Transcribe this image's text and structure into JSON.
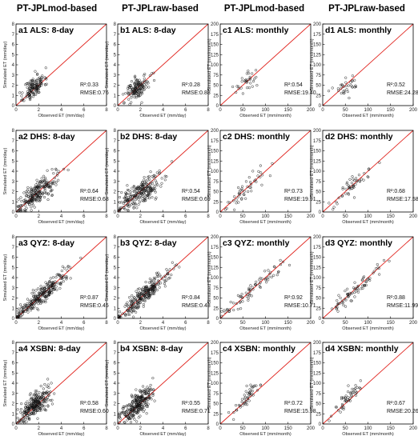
{
  "column_titles": [
    "PT-JPLmod-based",
    "PT-JPLraw-based",
    "PT-JPLmod-based",
    "PT-JPLraw-based"
  ],
  "chart_data": [
    {
      "type": "scatter",
      "id": "a1",
      "panel_label": "a1",
      "title": "ALS: 8-day",
      "xlabel": "Observed ET (mm/day)",
      "ylabel": "Simulated ET (mm/day)",
      "xlim": [
        0,
        8
      ],
      "ylim": [
        0,
        8
      ],
      "xticks": [
        "0",
        "2",
        "4",
        "6",
        "8"
      ],
      "yticks": [
        "0",
        "1",
        "2",
        "3",
        "4",
        "5",
        "6",
        "7",
        "8"
      ],
      "r2": "R²:0.33",
      "rmse": "RMSE:0.76",
      "cloud": {
        "cx": 1.6,
        "cy": 1.8,
        "sx": 0.45,
        "sy": 0.65,
        "rho": 0.55,
        "n": 140,
        "seed": 11
      }
    },
    {
      "type": "scatter",
      "id": "b1",
      "panel_label": "b1",
      "title": "ALS: 8-day",
      "xlabel": "Observed ET (mm/day)",
      "ylabel": "Simulated ET (mm/day)",
      "xlim": [
        0,
        8
      ],
      "ylim": [
        0,
        8
      ],
      "xticks": [
        "0",
        "2",
        "4",
        "6",
        "8"
      ],
      "yticks": [
        "0",
        "1",
        "2",
        "3",
        "4",
        "5",
        "6",
        "7",
        "8"
      ],
      "r2": "R²:0.28",
      "rmse": "RMSE:0.88",
      "cloud": {
        "cx": 1.8,
        "cy": 1.7,
        "sx": 0.5,
        "sy": 0.6,
        "rho": 0.5,
        "n": 140,
        "seed": 12
      }
    },
    {
      "type": "scatter",
      "id": "c1",
      "panel_label": "c1",
      "title": "ALS: monthly",
      "xlabel": "Observed ET (mm/month)",
      "ylabel": "Simulated ET (mm/month)",
      "xlim": [
        0,
        200
      ],
      "ylim": [
        0,
        200
      ],
      "xticks": [
        "0",
        "50",
        "100",
        "150",
        "200"
      ],
      "yticks": [
        "0",
        "25",
        "50",
        "75",
        "100",
        "125",
        "150",
        "175",
        "200"
      ],
      "r2": "R²:0.54",
      "rmse": "RMSE:19.40",
      "cloud": {
        "cx": 60,
        "cy": 60,
        "sx": 14,
        "sy": 16,
        "rho": 0.7,
        "n": 32,
        "seed": 13
      }
    },
    {
      "type": "scatter",
      "id": "d1",
      "panel_label": "d1",
      "title": "ALS: monthly",
      "xlabel": "Observed ET (mm/month)",
      "ylabel": "Simulated ET (mm/month)",
      "xlim": [
        0,
        200
      ],
      "ylim": [
        0,
        200
      ],
      "xticks": [
        "0",
        "50",
        "100",
        "150",
        "200"
      ],
      "yticks": [
        "0",
        "25",
        "50",
        "75",
        "100",
        "125",
        "150",
        "175",
        "200"
      ],
      "r2": "R²:0.52",
      "rmse": "RMSE:24.28",
      "cloud": {
        "cx": 60,
        "cy": 52,
        "sx": 16,
        "sy": 14,
        "rho": 0.7,
        "n": 32,
        "seed": 14
      }
    },
    {
      "type": "scatter",
      "id": "a2",
      "panel_label": "a2",
      "title": "DHS: 8-day",
      "xlabel": "Observed ET (mm/day)",
      "ylabel": "Simulated ET (mm/day)",
      "xlim": [
        0,
        8
      ],
      "ylim": [
        0,
        8
      ],
      "xticks": [
        "0",
        "2",
        "4",
        "6",
        "8"
      ],
      "yticks": [
        "0",
        "1",
        "2",
        "3",
        "4",
        "5",
        "6",
        "7",
        "8"
      ],
      "r2": "R²:0.64",
      "rmse": "RMSE:0.68",
      "cloud": {
        "cx": 1.9,
        "cy": 1.9,
        "sx": 0.9,
        "sy": 0.95,
        "rho": 0.8,
        "n": 230,
        "seed": 21
      }
    },
    {
      "type": "scatter",
      "id": "b2",
      "panel_label": "b2",
      "title": "DHS: 8-day",
      "xlabel": "Observed ET (mm/day)",
      "ylabel": "Simulated ET (mm/day)",
      "xlim": [
        0,
        8
      ],
      "ylim": [
        0,
        8
      ],
      "xticks": [
        "0",
        "2",
        "4",
        "6",
        "8"
      ],
      "yticks": [
        "0",
        "1",
        "2",
        "3",
        "4",
        "5",
        "6",
        "7",
        "8"
      ],
      "r2": "R²:0.54",
      "rmse": "RMSE:0.69",
      "cloud": {
        "cx": 1.9,
        "cy": 1.8,
        "sx": 0.9,
        "sy": 0.85,
        "rho": 0.74,
        "n": 230,
        "seed": 22
      }
    },
    {
      "type": "scatter",
      "id": "c2",
      "panel_label": "c2",
      "title": "DHS: monthly",
      "xlabel": "Observed ET (mm/month)",
      "ylabel": "Simulated ET (mm/month)",
      "xlim": [
        0,
        200
      ],
      "ylim": [
        0,
        200
      ],
      "xticks": [
        "0",
        "50",
        "100",
        "150",
        "200"
      ],
      "yticks": [
        "0",
        "25",
        "50",
        "75",
        "100",
        "125",
        "150",
        "175",
        "200"
      ],
      "r2": "R²:0.73",
      "rmse": "RMSE:19.91",
      "cloud": {
        "cx": 60,
        "cy": 58,
        "sx": 22,
        "sy": 24,
        "rho": 0.85,
        "n": 48,
        "seed": 23
      }
    },
    {
      "type": "scatter",
      "id": "d2",
      "panel_label": "d2",
      "title": "DHS: monthly",
      "xlabel": "Observed ET (mm/month)",
      "ylabel": "Simulated ET (mm/month)",
      "xlim": [
        0,
        200
      ],
      "ylim": [
        0,
        200
      ],
      "xticks": [
        "0",
        "50",
        "100",
        "150",
        "200"
      ],
      "yticks": [
        "0",
        "25",
        "50",
        "75",
        "100",
        "125",
        "150",
        "175",
        "200"
      ],
      "r2": "R²:0.68",
      "rmse": "RMSE:17.58",
      "cloud": {
        "cx": 58,
        "cy": 55,
        "sx": 22,
        "sy": 22,
        "rho": 0.82,
        "n": 48,
        "seed": 24
      }
    },
    {
      "type": "scatter",
      "id": "a3",
      "panel_label": "a3",
      "title": "QYZ: 8-day",
      "xlabel": "Observed ET (mm/day)",
      "ylabel": "Simulated ET (mm/day)",
      "xlim": [
        0,
        8
      ],
      "ylim": [
        0,
        8
      ],
      "xticks": [
        "0",
        "2",
        "4",
        "6",
        "8"
      ],
      "yticks": [
        "0",
        "1",
        "2",
        "3",
        "4",
        "5",
        "6",
        "7",
        "8"
      ],
      "r2": "R²:0.87",
      "rmse": "RMSE:0.45",
      "cloud": {
        "cx": 2.2,
        "cy": 2.2,
        "sx": 1.2,
        "sy": 1.2,
        "rho": 0.93,
        "n": 260,
        "seed": 31
      }
    },
    {
      "type": "scatter",
      "id": "b3",
      "panel_label": "b3",
      "title": "QYZ: 8-day",
      "xlabel": "Observed ET (mm/day)",
      "ylabel": "Simulated ET (mm/day)",
      "xlim": [
        0,
        8
      ],
      "ylim": [
        0,
        8
      ],
      "xticks": [
        "0",
        "2",
        "4",
        "6",
        "8"
      ],
      "yticks": [
        "0",
        "1",
        "2",
        "3",
        "4",
        "5",
        "6",
        "7",
        "8"
      ],
      "r2": "R²:0.84",
      "rmse": "RMSE:0.48",
      "cloud": {
        "cx": 2.2,
        "cy": 2.2,
        "sx": 1.2,
        "sy": 1.2,
        "rho": 0.92,
        "n": 260,
        "seed": 32
      }
    },
    {
      "type": "scatter",
      "id": "c3",
      "panel_label": "c3",
      "title": "QYZ: monthly",
      "xlabel": "Observed ET (mm/month)",
      "ylabel": "Simulated ET (mm/month)",
      "xlim": [
        0,
        200
      ],
      "ylim": [
        0,
        200
      ],
      "xticks": [
        "0",
        "50",
        "100",
        "150",
        "200"
      ],
      "yticks": [
        "0",
        "25",
        "50",
        "75",
        "100",
        "125",
        "150",
        "175",
        "200"
      ],
      "r2": "R²:0.92",
      "rmse": "RMSE:10.71",
      "cloud": {
        "cx": 70,
        "cy": 68,
        "sx": 32,
        "sy": 32,
        "rho": 0.96,
        "n": 72,
        "seed": 33
      }
    },
    {
      "type": "scatter",
      "id": "d3",
      "panel_label": "d3",
      "title": "QYZ: monthly",
      "xlabel": "Observed ET (mm/month)",
      "ylabel": "Simulated ET (mm/month)",
      "xlim": [
        0,
        200
      ],
      "ylim": [
        0,
        200
      ],
      "xticks": [
        "0",
        "50",
        "100",
        "150",
        "200"
      ],
      "yticks": [
        "0",
        "25",
        "50",
        "75",
        "100",
        "125",
        "150",
        "175",
        "200"
      ],
      "r2": "R²:0.88",
      "rmse": "RMSE:11.99",
      "cloud": {
        "cx": 70,
        "cy": 68,
        "sx": 32,
        "sy": 32,
        "rho": 0.94,
        "n": 72,
        "seed": 34
      }
    },
    {
      "type": "scatter",
      "id": "a4",
      "panel_label": "a4",
      "title": "XSBN: 8-day",
      "xlabel": "Observed ET (mm/day)",
      "ylabel": "Simulated ET (mm/day)",
      "xlim": [
        0,
        8
      ],
      "ylim": [
        0,
        8
      ],
      "xticks": [
        "0",
        "2",
        "4",
        "6",
        "8"
      ],
      "yticks": [
        "0",
        "1",
        "2",
        "3",
        "4",
        "5",
        "6",
        "7",
        "8"
      ],
      "r2": "R²:0.58",
      "rmse": "RMSE:0.60",
      "cloud": {
        "cx": 1.7,
        "cy": 1.9,
        "sx": 0.75,
        "sy": 0.85,
        "rho": 0.77,
        "n": 260,
        "seed": 41
      }
    },
    {
      "type": "scatter",
      "id": "b4",
      "panel_label": "b4",
      "title": "XSBN: 8-day",
      "xlabel": "Observed ET (mm/day)",
      "ylabel": "Simulated ET (mm/day)",
      "xlim": [
        0,
        8
      ],
      "ylim": [
        0,
        8
      ],
      "xticks": [
        "0",
        "2",
        "4",
        "6",
        "8"
      ],
      "yticks": [
        "0",
        "1",
        "2",
        "3",
        "4",
        "5",
        "6",
        "7",
        "8"
      ],
      "r2": "R²:0.55",
      "rmse": "RMSE:0.71",
      "cloud": {
        "cx": 1.7,
        "cy": 1.9,
        "sx": 0.75,
        "sy": 0.9,
        "rho": 0.74,
        "n": 260,
        "seed": 42
      }
    },
    {
      "type": "scatter",
      "id": "c4",
      "panel_label": "c4",
      "title": "XSBN: monthly",
      "xlabel": "Observed ET (mm/month)",
      "ylabel": "Simulated ET (mm/month)",
      "xlim": [
        0,
        200
      ],
      "ylim": [
        0,
        200
      ],
      "xticks": [
        "0",
        "50",
        "100",
        "150",
        "200"
      ],
      "yticks": [
        "0",
        "25",
        "50",
        "75",
        "100",
        "125",
        "150",
        "175",
        "200"
      ],
      "r2": "R²:0.72",
      "rmse": "RMSE:15.98",
      "cloud": {
        "cx": 55,
        "cy": 62,
        "sx": 16,
        "sy": 22,
        "rho": 0.85,
        "n": 48,
        "seed": 43
      }
    },
    {
      "type": "scatter",
      "id": "d4",
      "panel_label": "d4",
      "title": "XSBN: monthly",
      "xlabel": "Observed ET (mm/month)",
      "ylabel": "Simulated ET (mm/month)",
      "xlim": [
        0,
        200
      ],
      "ylim": [
        0,
        200
      ],
      "xticks": [
        "0",
        "50",
        "100",
        "150",
        "200"
      ],
      "yticks": [
        "0",
        "25",
        "50",
        "75",
        "100",
        "125",
        "150",
        "175",
        "200"
      ],
      "r2": "R²:0.67",
      "rmse": "RMSE:20.26",
      "cloud": {
        "cx": 55,
        "cy": 62,
        "sx": 16,
        "sy": 22,
        "rho": 0.82,
        "n": 48,
        "seed": 44
      }
    }
  ],
  "colors": {
    "one_to_one_line": "#e0211b",
    "points": "#111111",
    "frame": "#000000"
  }
}
